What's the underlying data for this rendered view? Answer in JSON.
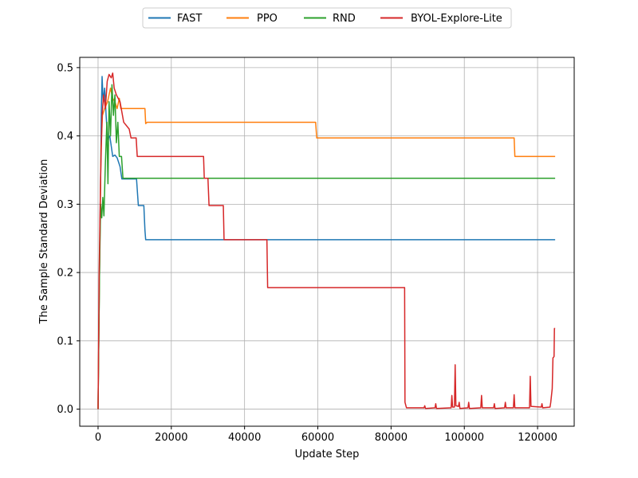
{
  "chart_data": {
    "type": "line",
    "title": "",
    "xlabel": "Update Step",
    "ylabel": "The Sample Standard Deviation",
    "xlim": [
      -5000,
      130000
    ],
    "ylim": [
      -0.025,
      0.515
    ],
    "xticks": [
      0,
      20000,
      40000,
      60000,
      80000,
      100000,
      120000
    ],
    "xtick_labels": [
      "0",
      "20000",
      "40000",
      "60000",
      "80000",
      "100000",
      "120000"
    ],
    "yticks": [
      0.0,
      0.1,
      0.2,
      0.3,
      0.4,
      0.5
    ],
    "ytick_labels": [
      "0.0",
      "0.1",
      "0.2",
      "0.3",
      "0.4",
      "0.5"
    ],
    "grid": true,
    "legend": {
      "placement": "top-center, above plot",
      "columns": 4
    },
    "series": [
      {
        "name": "FAST",
        "color": "#1f77b4",
        "points": [
          [
            0,
            0
          ],
          [
            300,
            0.15
          ],
          [
            600,
            0.3
          ],
          [
            900,
            0.44
          ],
          [
            1100,
            0.487
          ],
          [
            1400,
            0.45
          ],
          [
            1800,
            0.47
          ],
          [
            2200,
            0.43
          ],
          [
            2600,
            0.395
          ],
          [
            3200,
            0.4
          ],
          [
            3600,
            0.385
          ],
          [
            4000,
            0.37
          ],
          [
            4600,
            0.372
          ],
          [
            5200,
            0.368
          ],
          [
            6000,
            0.355
          ],
          [
            6500,
            0.337
          ],
          [
            10500,
            0.337
          ],
          [
            11000,
            0.298
          ],
          [
            12500,
            0.298
          ],
          [
            12800,
            0.262
          ],
          [
            13000,
            0.248
          ],
          [
            124800,
            0.248
          ]
        ]
      },
      {
        "name": "PPO",
        "color": "#ff7f0e",
        "points": [
          [
            0,
            0
          ],
          [
            400,
            0.2
          ],
          [
            800,
            0.38
          ],
          [
            1200,
            0.43
          ],
          [
            1800,
            0.44
          ],
          [
            2600,
            0.45
          ],
          [
            3400,
            0.47
          ],
          [
            4000,
            0.455
          ],
          [
            4600,
            0.45
          ],
          [
            5200,
            0.44
          ],
          [
            5800,
            0.455
          ],
          [
            6200,
            0.44
          ],
          [
            12800,
            0.44
          ],
          [
            13000,
            0.418
          ],
          [
            13400,
            0.42
          ],
          [
            59400,
            0.42
          ],
          [
            59700,
            0.397
          ],
          [
            113600,
            0.397
          ],
          [
            113800,
            0.37
          ],
          [
            124800,
            0.37
          ]
        ]
      },
      {
        "name": "RND",
        "color": "#2ca02c",
        "points": [
          [
            0,
            0
          ],
          [
            400,
            0.2
          ],
          [
            700,
            0.3
          ],
          [
            1000,
            0.28
          ],
          [
            1300,
            0.31
          ],
          [
            1600,
            0.283
          ],
          [
            2000,
            0.36
          ],
          [
            2400,
            0.42
          ],
          [
            2700,
            0.33
          ],
          [
            3000,
            0.45
          ],
          [
            3400,
            0.4
          ],
          [
            3800,
            0.475
          ],
          [
            4200,
            0.43
          ],
          [
            4600,
            0.46
          ],
          [
            5000,
            0.39
          ],
          [
            5400,
            0.42
          ],
          [
            5800,
            0.37
          ],
          [
            6400,
            0.37
          ],
          [
            6800,
            0.338
          ],
          [
            124800,
            0.338
          ]
        ]
      },
      {
        "name": "BYOL-Explore-Lite",
        "color": "#d62728",
        "points": [
          [
            0,
            0
          ],
          [
            300,
            0.2
          ],
          [
            700,
            0.34
          ],
          [
            1100,
            0.43
          ],
          [
            1500,
            0.46
          ],
          [
            2000,
            0.44
          ],
          [
            2500,
            0.48
          ],
          [
            3000,
            0.49
          ],
          [
            3600,
            0.485
          ],
          [
            4000,
            0.492
          ],
          [
            4400,
            0.47
          ],
          [
            5000,
            0.46
          ],
          [
            6000,
            0.45
          ],
          [
            7000,
            0.42
          ],
          [
            8500,
            0.41
          ],
          [
            9000,
            0.397
          ],
          [
            10400,
            0.397
          ],
          [
            10700,
            0.37
          ],
          [
            28800,
            0.37
          ],
          [
            29000,
            0.338
          ],
          [
            30000,
            0.338
          ],
          [
            30300,
            0.298
          ],
          [
            34200,
            0.298
          ],
          [
            34400,
            0.248
          ],
          [
            46100,
            0.248
          ],
          [
            46300,
            0.178
          ],
          [
            83700,
            0.178
          ],
          [
            83800,
            0.01
          ],
          [
            84200,
            0.002
          ],
          [
            89000,
            0.002
          ],
          [
            89200,
            0.005
          ],
          [
            89400,
            0.001
          ],
          [
            92000,
            0.002
          ],
          [
            92200,
            0.008
          ],
          [
            92400,
            0.001
          ],
          [
            96400,
            0.002
          ],
          [
            96600,
            0.02
          ],
          [
            96800,
            0.003
          ],
          [
            97300,
            0.003
          ],
          [
            97500,
            0.065
          ],
          [
            97700,
            0.005
          ],
          [
            98400,
            0.004
          ],
          [
            98600,
            0.01
          ],
          [
            98800,
            0.001
          ],
          [
            101000,
            0.002
          ],
          [
            101200,
            0.01
          ],
          [
            101400,
            0.001
          ],
          [
            104500,
            0.002
          ],
          [
            104700,
            0.02
          ],
          [
            104900,
            0.002
          ],
          [
            108000,
            0.002
          ],
          [
            108200,
            0.008
          ],
          [
            108400,
            0.001
          ],
          [
            111000,
            0.002
          ],
          [
            111200,
            0.01
          ],
          [
            111400,
            0.002
          ],
          [
            113400,
            0.002
          ],
          [
            113600,
            0.021
          ],
          [
            113800,
            0.002
          ],
          [
            117800,
            0.002
          ],
          [
            118000,
            0.048
          ],
          [
            118200,
            0.004
          ],
          [
            121000,
            0.003
          ],
          [
            121200,
            0.008
          ],
          [
            121400,
            0.002
          ],
          [
            123400,
            0.003
          ],
          [
            123600,
            0.01
          ],
          [
            124000,
            0.03
          ],
          [
            124200,
            0.075
          ],
          [
            124500,
            0.077
          ],
          [
            124600,
            0.118
          ],
          [
            124800,
            0.118
          ]
        ]
      }
    ]
  }
}
